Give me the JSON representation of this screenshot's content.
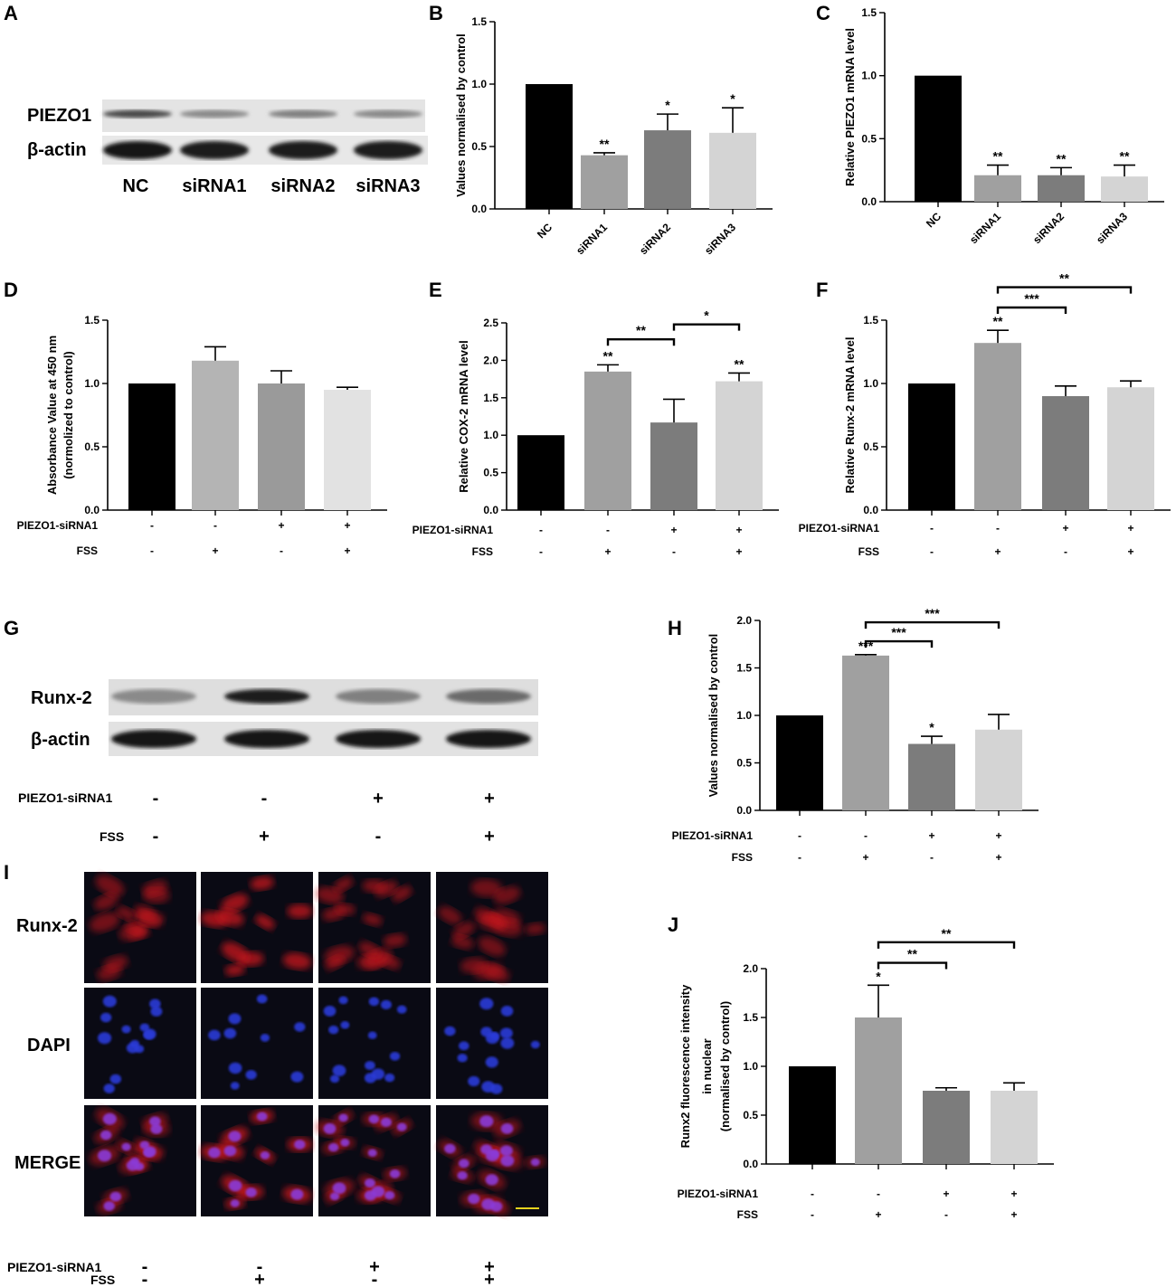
{
  "panel_labels": [
    "A",
    "B",
    "C",
    "D",
    "E",
    "F",
    "G",
    "H",
    "I",
    "J"
  ],
  "colors": {
    "bar": [
      "#000000",
      "#a0a0a0",
      "#7c7c7c",
      "#d4d4d4"
    ],
    "bar_D": [
      "#000000",
      "#b4b4b4",
      "#9a9a9a",
      "#e2e2e2"
    ],
    "red_stain": "#c8141e",
    "blue_stain": "#2a3ad8",
    "scale_bar": "#e6d21e"
  },
  "blot_A": {
    "rows": [
      "PIEZO1",
      "β-actin"
    ],
    "lanes": [
      "NC",
      "siRNA1",
      "siRNA2",
      "siRNA3"
    ],
    "intensity": {
      "PIEZO1": [
        0.75,
        0.45,
        0.5,
        0.45
      ],
      "β-actin": [
        1,
        0.95,
        0.95,
        0.95
      ]
    }
  },
  "blot_G": {
    "rows": [
      "Runx-2",
      "β-actin"
    ],
    "intensity": {
      "Runx-2": [
        0.45,
        0.95,
        0.5,
        0.6
      ],
      "β-actin": [
        1,
        1,
        1,
        1
      ]
    },
    "cond_labels": [
      "PIEZO1-siRNA1",
      "FSS"
    ],
    "piezo": [
      "-",
      "-",
      "+",
      "+"
    ],
    "fss": [
      "-",
      "+",
      "-",
      "+"
    ]
  },
  "micro_I": {
    "rows": [
      "Runx-2",
      "DAPI",
      "MERGE"
    ],
    "cond_labels": [
      "PIEZO1-siRNA1",
      "FSS"
    ],
    "piezo": [
      "-",
      "-",
      "+",
      "+"
    ],
    "fss": [
      "-",
      "+",
      "-",
      "+"
    ],
    "red_intensity": [
      0.55,
      0.95,
      0.6,
      0.5
    ],
    "nuclei_per_field": [
      14,
      10,
      15,
      15
    ]
  },
  "chart_data": [
    {
      "id": "B",
      "type": "bar",
      "categories": [
        "NC",
        "siRNA1",
        "siRNA2",
        "siRNA3"
      ],
      "values": [
        1.0,
        0.43,
        0.63,
        0.61
      ],
      "errors": [
        0,
        0.02,
        0.13,
        0.2
      ],
      "sig": [
        "",
        "**",
        "*",
        "*"
      ],
      "ylabel": "Values normalised by control",
      "ylim": [
        0,
        1.5
      ],
      "yticks": [
        0.0,
        0.5,
        1.0,
        1.5
      ],
      "rotate_xticks": true
    },
    {
      "id": "C",
      "type": "bar",
      "categories": [
        "NC",
        "siRNA1",
        "siRNA2",
        "siRNA3"
      ],
      "values": [
        1.0,
        0.21,
        0.21,
        0.2
      ],
      "errors": [
        0,
        0.08,
        0.06,
        0.09
      ],
      "sig": [
        "",
        "**",
        "**",
        "**"
      ],
      "ylabel": "Relative PIEZO1 mRNA level",
      "ylim": [
        0,
        1.5
      ],
      "yticks": [
        0.0,
        0.5,
        1.0,
        1.5
      ],
      "rotate_xticks": true
    },
    {
      "id": "D",
      "type": "bar",
      "values": [
        1.0,
        1.18,
        1.0,
        0.95
      ],
      "errors": [
        0,
        0.11,
        0.1,
        0.02
      ],
      "sig": [
        "",
        "",
        "",
        ""
      ],
      "ylabel": "Absorbance Value at 450 nm",
      "ylabel2": "(normolized to control)",
      "ylim": [
        0,
        1.5
      ],
      "yticks": [
        0.0,
        0.5,
        1.0,
        1.5
      ],
      "piezo": [
        "-",
        "-",
        "+",
        "+"
      ],
      "fss": [
        "-",
        "+",
        "-",
        "+"
      ],
      "cond_labels": [
        "PIEZO1-siRNA1",
        "FSS"
      ]
    },
    {
      "id": "E",
      "type": "bar",
      "values": [
        1.0,
        1.85,
        1.17,
        1.72
      ],
      "errors": [
        0,
        0.09,
        0.31,
        0.11
      ],
      "sig": [
        "",
        "**",
        "",
        "**"
      ],
      "ylabel": "Relative COX-2 mRNA level",
      "ylim": [
        0,
        2.5
      ],
      "yticks": [
        0.0,
        0.5,
        1.0,
        1.5,
        2.0,
        2.5
      ],
      "brackets": [
        {
          "from": 1,
          "to": 2,
          "label": "**",
          "y": 2.28
        },
        {
          "from": 2,
          "to": 3,
          "label": "*",
          "y": 2.48
        }
      ],
      "piezo": [
        "-",
        "-",
        "+",
        "+"
      ],
      "fss": [
        "-",
        "+",
        "-",
        "+"
      ],
      "cond_labels": [
        "PIEZO1-siRNA1",
        "FSS"
      ]
    },
    {
      "id": "F",
      "type": "bar",
      "values": [
        1.0,
        1.32,
        0.9,
        0.97
      ],
      "errors": [
        0,
        0.1,
        0.08,
        0.05
      ],
      "sig": [
        "",
        "**",
        "",
        ""
      ],
      "ylabel": "Relative Runx-2 mRNA level",
      "ylim": [
        0,
        1.5
      ],
      "yticks": [
        0.0,
        0.5,
        1.0,
        1.5
      ],
      "brackets": [
        {
          "from": 1,
          "to": 2,
          "label": "***",
          "y": 1.6
        },
        {
          "from": 1,
          "to": 3,
          "label": "**",
          "y": 1.76
        }
      ],
      "piezo": [
        "-",
        "-",
        "+",
        "+"
      ],
      "fss": [
        "-",
        "+",
        "-",
        "+"
      ],
      "cond_labels": [
        "PIEZO1-siRNA1",
        "FSS"
      ]
    },
    {
      "id": "H",
      "type": "bar",
      "values": [
        1.0,
        1.63,
        0.7,
        0.85
      ],
      "errors": [
        0,
        0.01,
        0.08,
        0.16
      ],
      "sig": [
        "",
        "***",
        "*",
        ""
      ],
      "ylabel": "Values normalised by control",
      "ylim": [
        0,
        2.0
      ],
      "yticks": [
        0.0,
        0.5,
        1.0,
        1.5,
        2.0
      ],
      "brackets": [
        {
          "from": 1,
          "to": 2,
          "label": "***",
          "y": 1.78
        },
        {
          "from": 1,
          "to": 3,
          "label": "***",
          "y": 1.98
        }
      ],
      "piezo": [
        "-",
        "-",
        "+",
        "+"
      ],
      "fss": [
        "-",
        "+",
        "-",
        "+"
      ],
      "cond_labels": [
        "PIEZO1-siRNA1",
        "FSS"
      ]
    },
    {
      "id": "J",
      "type": "bar",
      "values": [
        1.0,
        1.5,
        0.75,
        0.75
      ],
      "errors": [
        0,
        0.33,
        0.03,
        0.08
      ],
      "sig": [
        "",
        "*",
        "",
        ""
      ],
      "ylabel": "Runx2 fluorescence intensity",
      "ylabel2": "in nuclear",
      "ylabel3": "(normalised by control)",
      "ylim": [
        0,
        2.0
      ],
      "yticks": [
        0.0,
        0.5,
        1.0,
        1.5,
        2.0
      ],
      "brackets": [
        {
          "from": 1,
          "to": 2,
          "label": "**",
          "y": 2.06
        },
        {
          "from": 1,
          "to": 3,
          "label": "**",
          "y": 2.27
        }
      ],
      "piezo": [
        "-",
        "-",
        "+",
        "+"
      ],
      "fss": [
        "-",
        "+",
        "-",
        "+"
      ],
      "cond_labels": [
        "PIEZO1-siRNA1",
        "FSS"
      ]
    }
  ]
}
